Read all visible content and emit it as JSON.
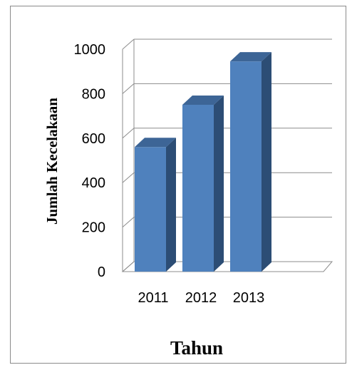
{
  "chart_data": {
    "type": "bar",
    "style": "3d-column",
    "categories": [
      "2011",
      "2012",
      "2013"
    ],
    "values": [
      560,
      750,
      945
    ],
    "xlabel": "Tahun",
    "ylabel": "Jumlah Kecelakaan",
    "ylim": [
      0,
      1000
    ],
    "yticks": [
      "0",
      "200",
      "400",
      "600",
      "800",
      "1000"
    ],
    "grid": true,
    "legend": "none",
    "colors": {
      "bar_front": "#4F81BD",
      "bar_side": "#2C4D75",
      "bar_top": "#3D6596",
      "grid": "#8C8C8C"
    }
  }
}
